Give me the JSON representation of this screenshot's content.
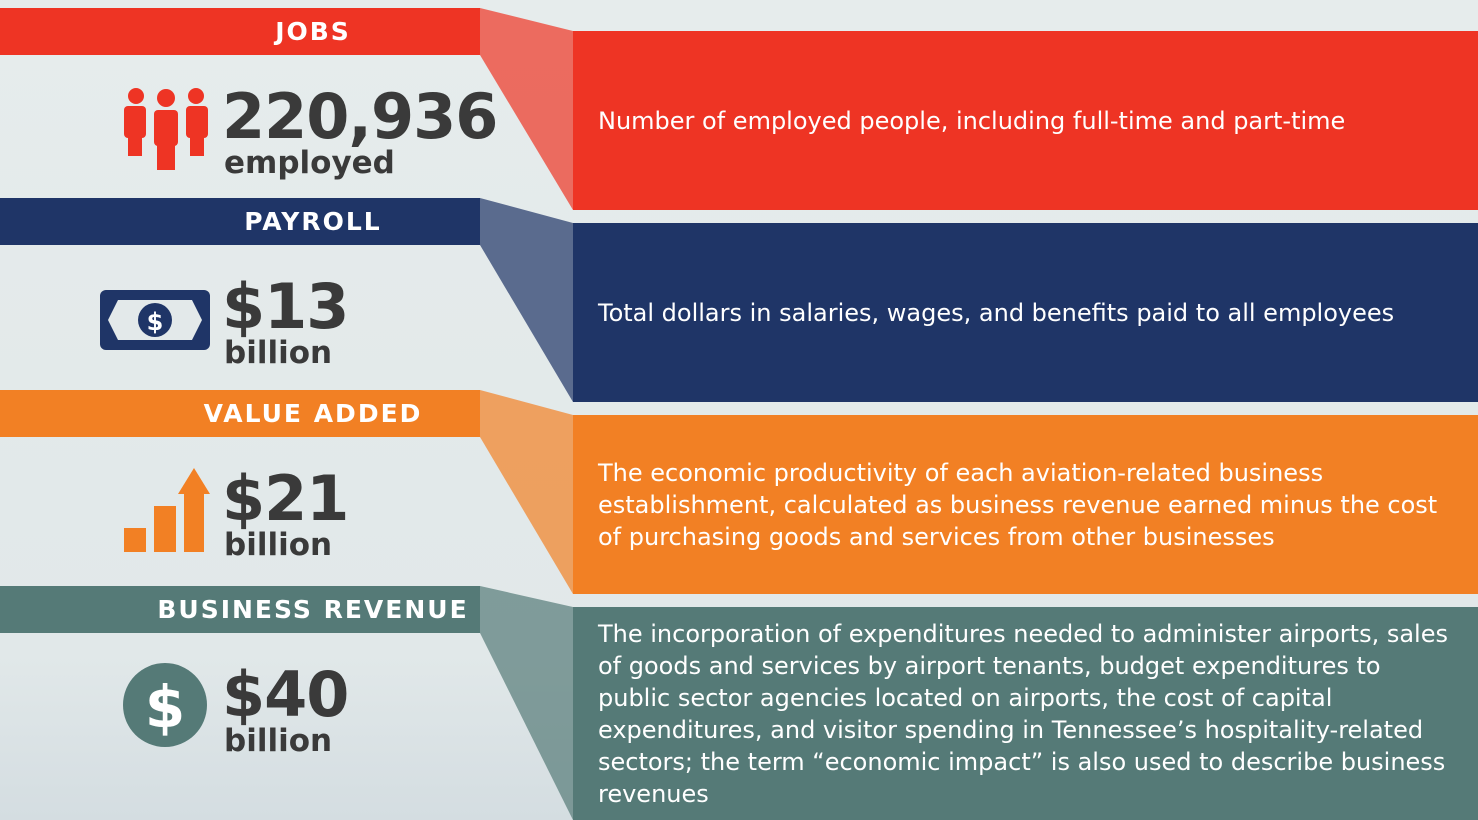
{
  "sections": [
    {
      "header": "JOBS",
      "value": "220,936",
      "unit": "employed",
      "color": "#ee3424",
      "description": "Number of employed people, including full-time and part-time"
    },
    {
      "header": "PAYROLL",
      "value": "$13",
      "unit": "billion",
      "color": "#1f3567",
      "description": "Total dollars in salaries, wages, and benefits paid to all employees"
    },
    {
      "header": "VALUE ADDED",
      "value": "$21",
      "unit": "billion",
      "color": "#f28024",
      "description": "The economic productivity of each aviation-related business establishment, calculated as business revenue earned minus the cost of purchasing goods and services from other businesses"
    },
    {
      "header": "BUSINESS REVENUE",
      "value": "$40",
      "unit": "billion",
      "color": "#557a77",
      "description": "The incorporation of expenditures needed to administer airports, sales of goods and services by airport tenants, budget expenditures to public sector agencies located on airports, the cost of capital expenditures, and visitor spending in Tennessee’s hospitality-related sectors; the term “economic impact” is also used to describe business revenues"
    }
  ]
}
